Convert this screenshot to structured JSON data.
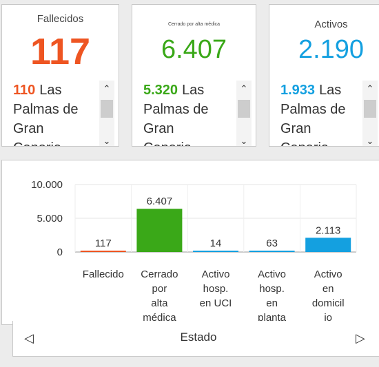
{
  "cards": [
    {
      "title": "Fallecidos",
      "value": "117",
      "color": "#ee5522",
      "list_number": "110",
      "list_lines": [
        "Las",
        "Palmas de",
        "Gran",
        "Canaria"
      ]
    },
    {
      "title": "Cerrado por alta médica",
      "value": "6.407",
      "color": "#3aa818",
      "list_number": "5.320",
      "list_lines": [
        "Las",
        "Palmas de",
        "Gran",
        "Canaria"
      ]
    },
    {
      "title": "Activos",
      "value": "2.190",
      "color": "#14a0e0",
      "list_number": "1.933",
      "list_lines": [
        "Las",
        "Palmas de",
        "Gran",
        "Canaria"
      ]
    }
  ],
  "chart_data": {
    "type": "bar",
    "categories": [
      [
        "Fallecido"
      ],
      [
        "Cerrado",
        "por",
        "alta",
        "médica"
      ],
      [
        "Activo",
        "hosp.",
        "en UCI"
      ],
      [
        "Activo",
        "hosp.",
        "en",
        "planta"
      ],
      [
        "Activo",
        "en",
        "domicil",
        "io"
      ]
    ],
    "values": [
      117,
      6407,
      14,
      63,
      2113
    ],
    "value_labels": [
      "117",
      "6.407",
      "14",
      "63",
      "2.113"
    ],
    "colors": [
      "#ee5522",
      "#3aa818",
      "#14a0e0",
      "#14a0e0",
      "#14a0e0"
    ],
    "y_ticks": [
      {
        "value": 10000,
        "label": "10.000"
      },
      {
        "value": 5000,
        "label": "5.000"
      },
      {
        "value": 0,
        "label": "0"
      }
    ],
    "ylim": [
      0,
      10000
    ],
    "xlabel": "Estado",
    "grid": true
  },
  "footer": {
    "prev_icon": "triangle-left-icon",
    "next_icon": "triangle-right-icon",
    "prev_glyph": "◁",
    "next_glyph": "▷"
  }
}
